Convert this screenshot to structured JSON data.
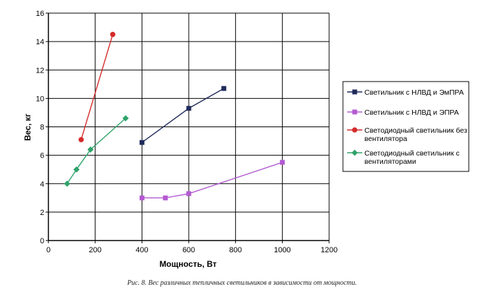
{
  "chart_data": {
    "type": "line",
    "xlabel": "Мощность, Вт",
    "ylabel": "Вес, кг",
    "xlim": [
      0,
      1200
    ],
    "ylim": [
      0,
      16
    ],
    "xticks": [
      0,
      200,
      400,
      600,
      800,
      1000,
      1200
    ],
    "yticks": [
      0,
      2,
      4,
      6,
      8,
      10,
      12,
      14,
      16
    ],
    "grid": true,
    "legend_position": "right",
    "series": [
      {
        "name": "Светильник с НЛВД и ЭмПРА",
        "color": "#1f2a5a",
        "marker": "square",
        "x": [
          400,
          600,
          750
        ],
        "y": [
          6.9,
          9.3,
          10.7
        ]
      },
      {
        "name": "Светильник с НЛВД и ЭПРА",
        "color": "#b35ad1",
        "marker": "square",
        "x": [
          400,
          500,
          600,
          1000
        ],
        "y": [
          3.0,
          3.0,
          3.3,
          5.5
        ]
      },
      {
        "name": "Светодиодный светильник без вентилятора",
        "color": "#d42a2a",
        "marker": "circle",
        "x": [
          140,
          275
        ],
        "y": [
          7.1,
          14.5
        ]
      },
      {
        "name": "Светодиодный светильник с вентиляторами",
        "color": "#2fa36a",
        "marker": "diamond",
        "x": [
          80,
          120,
          180,
          330
        ],
        "y": [
          4.0,
          5.0,
          6.4,
          8.6
        ]
      }
    ]
  },
  "caption": "Рис. 8. Вес различных тепличных светильников в зависимости от мощности."
}
